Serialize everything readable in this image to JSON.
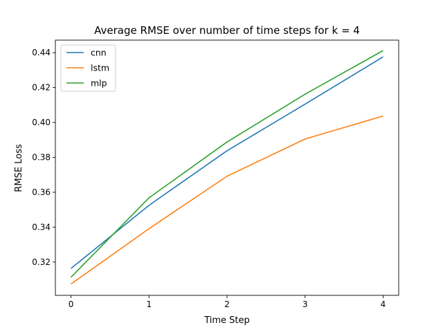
{
  "chart_data": {
    "type": "line",
    "title": "Average RMSE over number of time steps for k = 4",
    "xlabel": "Time Step",
    "ylabel": "RMSE Loss",
    "x": [
      0,
      1,
      2,
      3,
      4
    ],
    "x_ticks": [
      "0",
      "1",
      "2",
      "3",
      "4"
    ],
    "xlim": [
      -0.2,
      4.2
    ],
    "y_ticks": [
      "0.32",
      "0.34",
      "0.36",
      "0.38",
      "0.40",
      "0.42",
      "0.44"
    ],
    "y_tick_values": [
      0.32,
      0.34,
      0.36,
      0.38,
      0.4,
      0.42,
      0.44
    ],
    "ylim": [
      0.3009,
      0.4472
    ],
    "grid": false,
    "legend_position": "top-left",
    "series": [
      {
        "name": "cnn",
        "color": "#1f77b4",
        "values": [
          0.3163,
          0.3525,
          0.3838,
          0.4105,
          0.4376
        ]
      },
      {
        "name": "lstm",
        "color": "#ff7f0e",
        "values": [
          0.3074,
          0.3391,
          0.3692,
          0.3905,
          0.4037
        ]
      },
      {
        "name": "mlp",
        "color": "#2ca02c",
        "values": [
          0.3113,
          0.3568,
          0.3888,
          0.4162,
          0.4412
        ]
      }
    ]
  }
}
